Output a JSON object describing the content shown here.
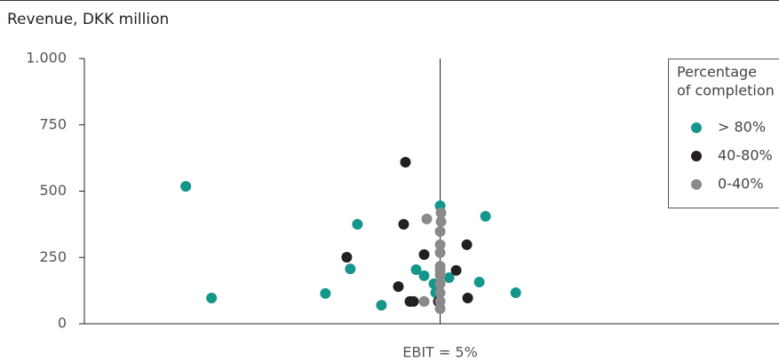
{
  "chart_data": {
    "type": "scatter",
    "title": "Revenue, DKK million",
    "annotation": "EBIT = 5%",
    "vline": 5,
    "legend_title": [
      "Percentage",
      "of completion"
    ],
    "legend": "upper right",
    "xlim": [
      -15,
      24.05
    ],
    "ylim": [
      0,
      1000
    ],
    "yticks": [
      0,
      250,
      500,
      750,
      {
        "value": 1000,
        "label": "1.000"
      }
    ],
    "series": [
      {
        "name": "> 80%",
        "color": "#15968b",
        "x": [
          -9.3,
          -7.85,
          -1.45,
          -0.05,
          0.35,
          1.7,
          3.65,
          4.1,
          4.65,
          4.75,
          5,
          5.5,
          7.2,
          7.55,
          9.25
        ],
        "values": [
          518,
          97,
          114,
          207,
          375,
          70,
          204,
          181,
          151,
          117,
          445,
          174,
          157,
          405,
          117
        ]
      },
      {
        "name": "40-80%",
        "color": "#231f20",
        "x": [
          3.05,
          2.95,
          -0.25,
          2.65,
          3.3,
          4.1,
          6.5,
          5.9,
          6.55,
          4.9,
          3.5
        ],
        "values": [
          609,
          375,
          251,
          140,
          84,
          261,
          298,
          201,
          97,
          84,
          84
        ]
      },
      {
        "name": "0-40%",
        "color": "#8a8a8a",
        "x": [
          4.25,
          5.05,
          5.05,
          5,
          5,
          5,
          5,
          5,
          5,
          5,
          5,
          5,
          4.1,
          5
        ],
        "values": [
          395,
          418,
          385,
          348,
          298,
          268,
          217,
          184,
          151,
          117,
          84,
          57,
          84,
          201
        ]
      }
    ]
  }
}
